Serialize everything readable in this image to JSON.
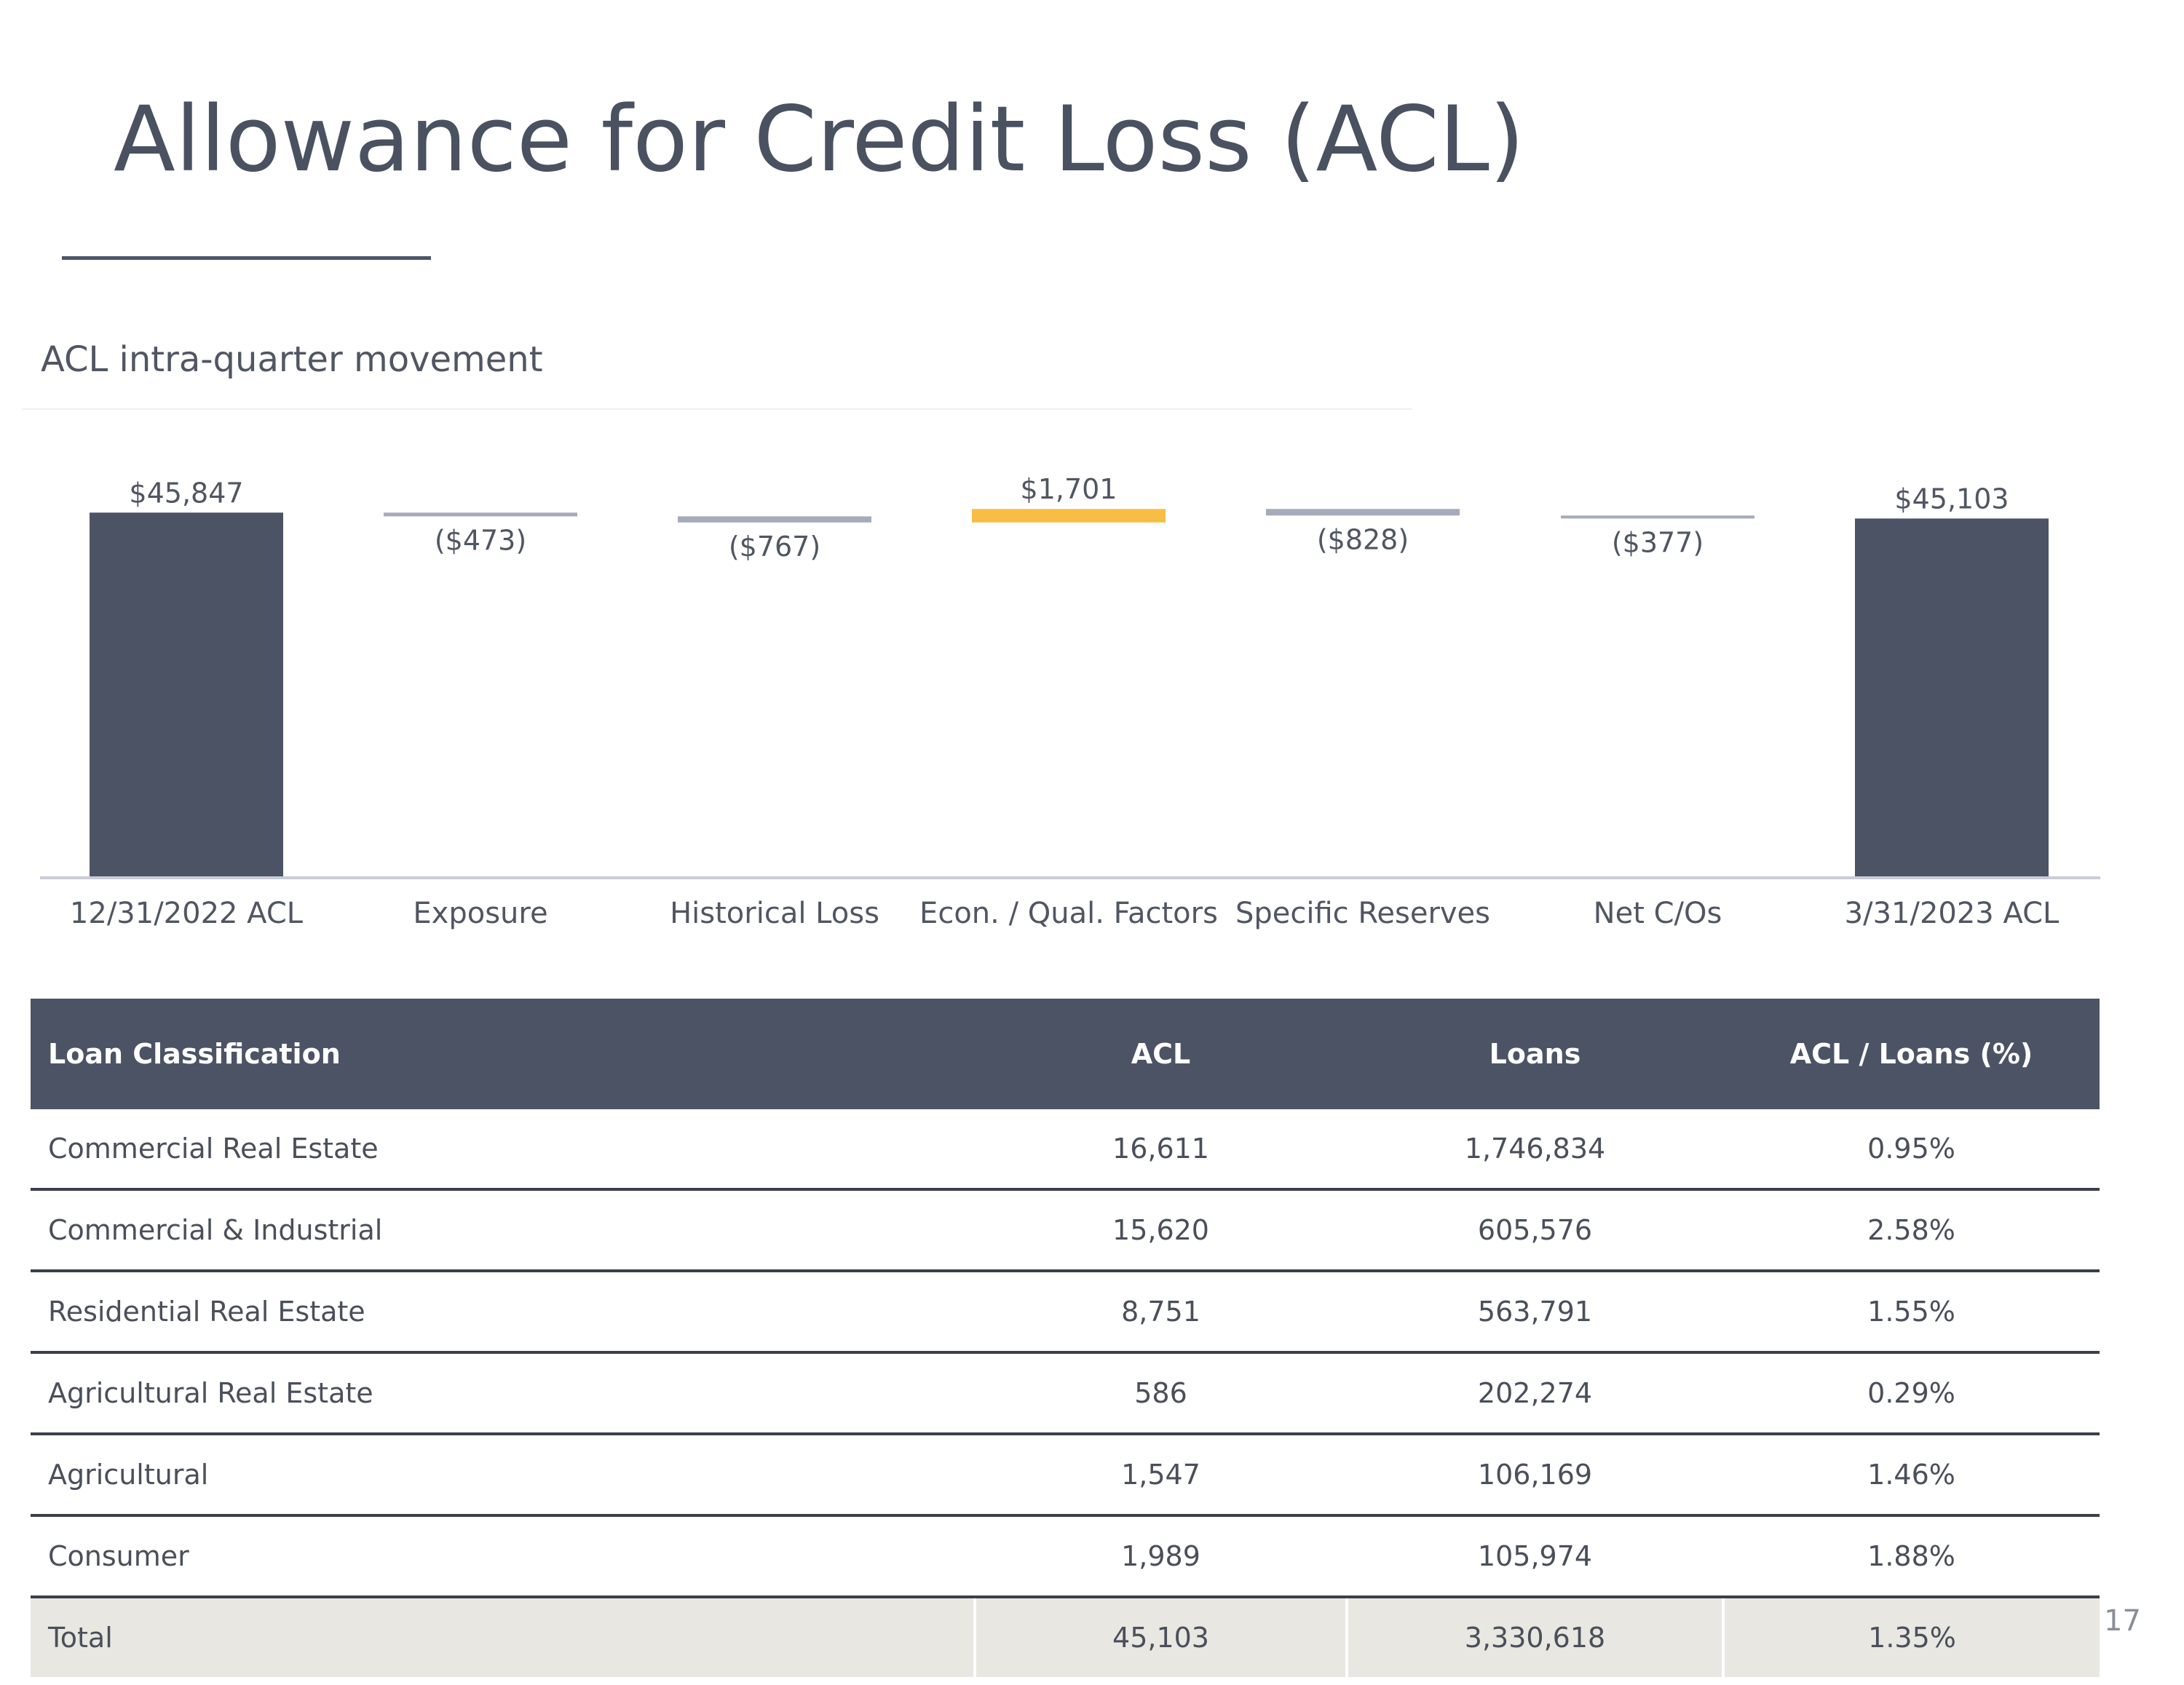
{
  "title": "Allowance for Credit Loss (ACL)",
  "subtitle": "ACL intra-quarter movement",
  "page_number": "17",
  "colors": {
    "total_bar": "#4c5365",
    "decrease_bar": "#a6abbb",
    "increase_bar": "#f7bd44",
    "header_bg": "#4c5365",
    "total_row_bg": "#e8e7e1"
  },
  "chart_data": {
    "type": "bar",
    "subtype": "waterfall",
    "title": "",
    "xlabel": "",
    "ylabel": "",
    "grid": false,
    "legend": "none",
    "categories": [
      "12/31/2022 ACL",
      "Exposure",
      "Historical Loss",
      "Econ. / Qual. Factors",
      "Specific Reserves",
      "Net C/Os",
      "3/31/2023 ACL"
    ],
    "values": [
      45847,
      -473,
      -767,
      1701,
      -828,
      -377,
      45103
    ],
    "kinds": [
      "total",
      "decrease",
      "decrease",
      "increase",
      "decrease",
      "decrease",
      "total"
    ],
    "labels": [
      "$45,847",
      "($473)",
      "($767)",
      "$1,701",
      "($828)",
      "($377)",
      "$45,103"
    ]
  },
  "table": {
    "headers": [
      "Loan Classification",
      "ACL",
      "Loans",
      "ACL / Loans (%)"
    ],
    "rows": [
      [
        "Commercial Real Estate",
        "16,611",
        "1,746,834",
        "0.95%"
      ],
      [
        "Commercial & Industrial",
        "15,620",
        "605,576",
        "2.58%"
      ],
      [
        "Residential Real Estate",
        "8,751",
        "563,791",
        "1.55%"
      ],
      [
        "Agricultural Real Estate",
        "586",
        "202,274",
        "0.29%"
      ],
      [
        "Agricultural",
        "1,547",
        "106,169",
        "1.46%"
      ],
      [
        "Consumer",
        "1,989",
        "105,974",
        "1.88%"
      ]
    ],
    "total": [
      "Total",
      "45,103",
      "3,330,618",
      "1.35%"
    ]
  }
}
